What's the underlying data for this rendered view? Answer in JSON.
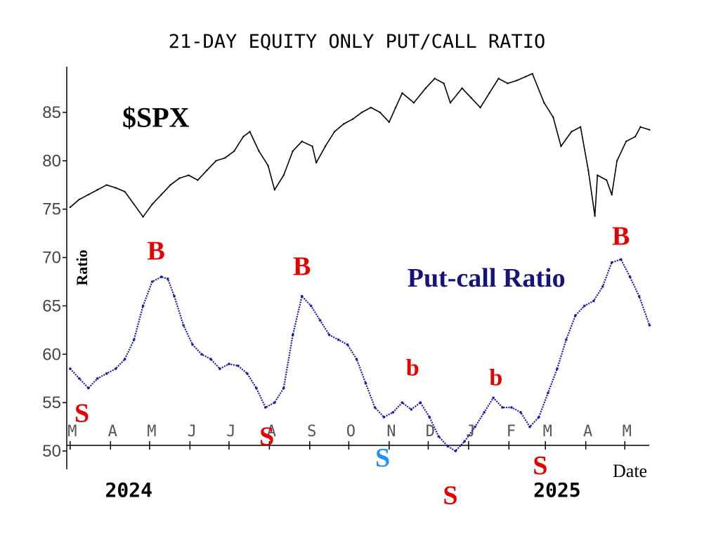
{
  "chart_data": {
    "type": "line",
    "title": "21-DAY EQUITY ONLY PUT/CALL RATIO",
    "ylabel": "Ratio",
    "xlabel": "Date",
    "ylim": [
      50,
      90
    ],
    "yticks": [
      50,
      55,
      60,
      65,
      70,
      75,
      80,
      85
    ],
    "ytick_labels": [
      "50",
      "55",
      "60",
      "65",
      "70",
      "75",
      "80",
      "85"
    ],
    "xticks": [
      {
        "label": "M",
        "date": "2024-03-01"
      },
      {
        "label": "A",
        "date": "2024-04-01"
      },
      {
        "label": "M",
        "date": "2024-05-01"
      },
      {
        "label": "J",
        "date": "2024-06-01"
      },
      {
        "label": "J",
        "date": "2024-07-01"
      },
      {
        "label": "A",
        "date": "2024-08-01"
      },
      {
        "label": "S",
        "date": "2024-09-01"
      },
      {
        "label": "O",
        "date": "2024-10-01"
      },
      {
        "label": "N",
        "date": "2024-11-01"
      },
      {
        "label": "D",
        "date": "2024-12-01"
      },
      {
        "label": "J",
        "date": "2025-01-01"
      },
      {
        "label": "F",
        "date": "2025-02-01"
      },
      {
        "label": "M",
        "date": "2025-03-01"
      },
      {
        "label": "A",
        "date": "2025-04-01"
      },
      {
        "label": "M",
        "date": "2025-05-01"
      }
    ],
    "year_labels": [
      {
        "label": "2024",
        "date": "2024-04-15"
      },
      {
        "label": "2025",
        "date": "2025-03-10"
      }
    ],
    "x_range": [
      "2024-03-01",
      "2025-05-20"
    ],
    "series": [
      {
        "name": "$SPX",
        "color": "#000000",
        "values": [
          [
            "2024-03-01",
            75.2
          ],
          [
            "2024-03-08",
            76.0
          ],
          [
            "2024-03-15",
            76.5
          ],
          [
            "2024-03-22",
            77.0
          ],
          [
            "2024-03-29",
            77.5
          ],
          [
            "2024-04-05",
            77.2
          ],
          [
            "2024-04-12",
            76.8
          ],
          [
            "2024-04-19",
            75.5
          ],
          [
            "2024-04-26",
            74.2
          ],
          [
            "2024-05-03",
            75.5
          ],
          [
            "2024-05-10",
            76.5
          ],
          [
            "2024-05-17",
            77.5
          ],
          [
            "2024-05-24",
            78.2
          ],
          [
            "2024-05-31",
            78.5
          ],
          [
            "2024-06-07",
            78.0
          ],
          [
            "2024-06-14",
            79.0
          ],
          [
            "2024-06-21",
            80.0
          ],
          [
            "2024-06-28",
            80.3
          ],
          [
            "2024-07-05",
            81.0
          ],
          [
            "2024-07-12",
            82.5
          ],
          [
            "2024-07-17",
            83.0
          ],
          [
            "2024-07-24",
            81.0
          ],
          [
            "2024-07-31",
            79.5
          ],
          [
            "2024-08-05",
            77.0
          ],
          [
            "2024-08-12",
            78.5
          ],
          [
            "2024-08-19",
            81.0
          ],
          [
            "2024-08-26",
            82.0
          ],
          [
            "2024-09-03",
            81.5
          ],
          [
            "2024-09-06",
            79.8
          ],
          [
            "2024-09-13",
            81.5
          ],
          [
            "2024-09-20",
            83.0
          ],
          [
            "2024-09-27",
            83.8
          ],
          [
            "2024-10-04",
            84.3
          ],
          [
            "2024-10-11",
            85.0
          ],
          [
            "2024-10-18",
            85.5
          ],
          [
            "2024-10-25",
            85.0
          ],
          [
            "2024-11-01",
            84.0
          ],
          [
            "2024-11-06",
            85.5
          ],
          [
            "2024-11-11",
            87.0
          ],
          [
            "2024-11-20",
            86.0
          ],
          [
            "2024-11-29",
            87.5
          ],
          [
            "2024-12-06",
            88.5
          ],
          [
            "2024-12-13",
            88.0
          ],
          [
            "2024-12-18",
            86.0
          ],
          [
            "2024-12-27",
            87.5
          ],
          [
            "2025-01-03",
            86.5
          ],
          [
            "2025-01-10",
            85.5
          ],
          [
            "2025-01-17",
            87.0
          ],
          [
            "2025-01-24",
            88.5
          ],
          [
            "2025-01-31",
            88.0
          ],
          [
            "2025-02-07",
            88.3
          ],
          [
            "2025-02-14",
            88.7
          ],
          [
            "2025-02-19",
            89.0
          ],
          [
            "2025-02-28",
            86.0
          ],
          [
            "2025-03-07",
            84.5
          ],
          [
            "2025-03-13",
            81.5
          ],
          [
            "2025-03-21",
            83.0
          ],
          [
            "2025-03-28",
            83.5
          ],
          [
            "2025-04-03",
            79.0
          ],
          [
            "2025-04-08",
            74.3
          ],
          [
            "2025-04-10",
            78.5
          ],
          [
            "2025-04-17",
            78.0
          ],
          [
            "2025-04-21",
            76.5
          ],
          [
            "2025-04-25",
            80.0
          ],
          [
            "2025-05-02",
            82.0
          ],
          [
            "2025-05-09",
            82.5
          ],
          [
            "2025-05-13",
            83.5
          ],
          [
            "2025-05-20",
            83.2
          ]
        ]
      },
      {
        "name": "Put-call Ratio",
        "color": "#1a1ab4",
        "values": [
          [
            "2024-03-01",
            58.5
          ],
          [
            "2024-03-08",
            57.5
          ],
          [
            "2024-03-15",
            56.5
          ],
          [
            "2024-03-22",
            57.5
          ],
          [
            "2024-03-29",
            58.0
          ],
          [
            "2024-04-05",
            58.5
          ],
          [
            "2024-04-12",
            59.5
          ],
          [
            "2024-04-19",
            61.5
          ],
          [
            "2024-04-26",
            65.0
          ],
          [
            "2024-05-03",
            67.5
          ],
          [
            "2024-05-10",
            68.0
          ],
          [
            "2024-05-15",
            67.8
          ],
          [
            "2024-05-20",
            66.0
          ],
          [
            "2024-05-27",
            63.0
          ],
          [
            "2024-06-03",
            61.0
          ],
          [
            "2024-06-10",
            60.0
          ],
          [
            "2024-06-17",
            59.5
          ],
          [
            "2024-06-24",
            58.5
          ],
          [
            "2024-07-01",
            59.0
          ],
          [
            "2024-07-08",
            58.8
          ],
          [
            "2024-07-15",
            58.0
          ],
          [
            "2024-07-22",
            56.5
          ],
          [
            "2024-07-29",
            54.5
          ],
          [
            "2024-08-05",
            55.0
          ],
          [
            "2024-08-12",
            56.5
          ],
          [
            "2024-08-19",
            62.0
          ],
          [
            "2024-08-26",
            66.0
          ],
          [
            "2024-09-02",
            65.0
          ],
          [
            "2024-09-09",
            63.5
          ],
          [
            "2024-09-16",
            62.0
          ],
          [
            "2024-09-23",
            61.5
          ],
          [
            "2024-09-30",
            61.0
          ],
          [
            "2024-10-07",
            59.5
          ],
          [
            "2024-10-14",
            57.0
          ],
          [
            "2024-10-21",
            54.5
          ],
          [
            "2024-10-28",
            53.5
          ],
          [
            "2024-11-04",
            54.0
          ],
          [
            "2024-11-11",
            55.0
          ],
          [
            "2024-11-18",
            54.3
          ],
          [
            "2024-11-25",
            55.0
          ],
          [
            "2024-12-02",
            53.5
          ],
          [
            "2024-12-09",
            51.5
          ],
          [
            "2024-12-16",
            50.5
          ],
          [
            "2024-12-22",
            50.0
          ],
          [
            "2024-12-29",
            51.0
          ],
          [
            "2025-01-06",
            52.5
          ],
          [
            "2025-01-13",
            54.0
          ],
          [
            "2025-01-20",
            55.5
          ],
          [
            "2025-01-27",
            54.5
          ],
          [
            "2025-02-03",
            54.5
          ],
          [
            "2025-02-10",
            54.0
          ],
          [
            "2025-02-17",
            52.5
          ],
          [
            "2025-02-24",
            53.5
          ],
          [
            "2025-03-03",
            56.0
          ],
          [
            "2025-03-10",
            58.5
          ],
          [
            "2025-03-17",
            61.5
          ],
          [
            "2025-03-24",
            64.0
          ],
          [
            "2025-03-31",
            65.0
          ],
          [
            "2025-04-07",
            65.5
          ],
          [
            "2025-04-14",
            67.0
          ],
          [
            "2025-04-21",
            69.5
          ],
          [
            "2025-04-28",
            69.8
          ],
          [
            "2025-05-05",
            68.0
          ],
          [
            "2025-05-12",
            66.0
          ],
          [
            "2025-05-20",
            63.0
          ]
        ]
      }
    ],
    "annotations": [
      {
        "text": "$SPX",
        "color": "#000000",
        "date": "2024-04-10",
        "y": 83.5,
        "size": "xlarge"
      },
      {
        "text": "Put-call Ratio",
        "color": "#14147a",
        "date": "2024-11-15",
        "y": 67.0,
        "size": "large"
      },
      {
        "text": "B",
        "color": "#e60000",
        "date": "2024-05-06",
        "y": 69.8,
        "size": "large"
      },
      {
        "text": "B",
        "color": "#e60000",
        "date": "2024-08-26",
        "y": 68.2,
        "size": "large"
      },
      {
        "text": "B",
        "color": "#e60000",
        "date": "2025-04-28",
        "y": 71.3,
        "size": "large"
      },
      {
        "text": "b",
        "color": "#e60000",
        "date": "2024-11-19",
        "y": 57.8,
        "size": "medium"
      },
      {
        "text": "b",
        "color": "#e60000",
        "date": "2025-01-22",
        "y": 56.8,
        "size": "medium"
      },
      {
        "text": "S",
        "color": "#e60000",
        "date": "2024-03-10",
        "y": 53.0,
        "size": "large"
      },
      {
        "text": "S",
        "color": "#e60000",
        "date": "2024-07-30",
        "y": 50.6,
        "size": "large"
      },
      {
        "text": "S",
        "color": "#1e90ff",
        "date": "2024-10-27",
        "y": 48.4,
        "size": "large"
      },
      {
        "text": "S",
        "color": "#e60000",
        "date": "2024-12-18",
        "y": 44.5,
        "size": "large"
      },
      {
        "text": "S",
        "color": "#e60000",
        "date": "2025-02-25",
        "y": 47.6,
        "size": "large"
      }
    ]
  }
}
